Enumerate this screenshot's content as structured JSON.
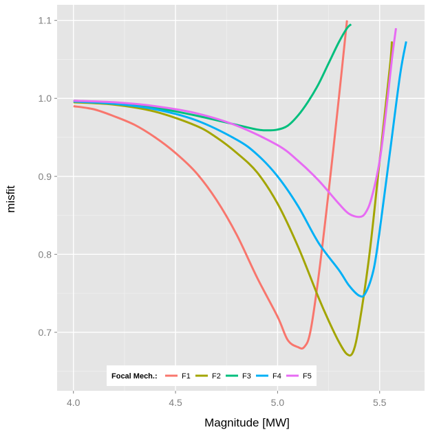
{
  "chart_data": {
    "type": "line",
    "xlabel": "Magnitude [MW]",
    "ylabel": "misfit",
    "xlim": [
      3.92,
      5.72
    ],
    "ylim": [
      0.625,
      1.12
    ],
    "x_ticks": [
      4.0,
      4.5,
      5.0,
      5.5
    ],
    "x_tick_labels": [
      "4.0",
      "4.5",
      "5.0",
      "5.5"
    ],
    "y_ticks": [
      0.7,
      0.8,
      0.9,
      1.0,
      1.1
    ],
    "y_tick_labels": [
      "0.7",
      "0.8",
      "0.9",
      "1.0",
      "1.1"
    ],
    "grid": true,
    "legend": {
      "title": "Focal Mech.:",
      "placement": "bottom"
    },
    "series": [
      {
        "name": "F1",
        "color": "#F8766D",
        "x": [
          4.0,
          4.1,
          4.2,
          4.3,
          4.4,
          4.5,
          4.6,
          4.7,
          4.8,
          4.9,
          5.0,
          5.05,
          5.1,
          5.13,
          5.16,
          5.2,
          5.25,
          5.3,
          5.34
        ],
        "y": [
          0.99,
          0.986,
          0.977,
          0.966,
          0.95,
          0.93,
          0.905,
          0.87,
          0.825,
          0.77,
          0.72,
          0.69,
          0.681,
          0.681,
          0.7,
          0.77,
          0.88,
          1.0,
          1.1
        ]
      },
      {
        "name": "F2",
        "color": "#A3A500",
        "x": [
          4.0,
          4.2,
          4.4,
          4.6,
          4.7,
          4.8,
          4.9,
          5.0,
          5.1,
          5.2,
          5.25,
          5.3,
          5.34,
          5.37,
          5.4,
          5.45,
          5.5,
          5.55,
          5.56
        ],
        "y": [
          0.995,
          0.992,
          0.983,
          0.965,
          0.95,
          0.93,
          0.905,
          0.865,
          0.81,
          0.745,
          0.715,
          0.688,
          0.672,
          0.675,
          0.71,
          0.8,
          0.92,
          1.04,
          1.073
        ]
      },
      {
        "name": "F3",
        "color": "#00BF7D",
        "x": [
          4.0,
          4.2,
          4.4,
          4.6,
          4.8,
          4.9,
          4.95,
          5.0,
          5.05,
          5.1,
          5.15,
          5.2,
          5.25,
          5.3,
          5.34,
          5.36
        ],
        "y": [
          0.997,
          0.994,
          0.988,
          0.978,
          0.966,
          0.96,
          0.959,
          0.96,
          0.965,
          0.978,
          0.996,
          1.018,
          1.045,
          1.072,
          1.09,
          1.095
        ]
      },
      {
        "name": "F4",
        "color": "#00B0F6",
        "x": [
          4.0,
          4.2,
          4.4,
          4.6,
          4.8,
          4.9,
          5.0,
          5.1,
          5.2,
          5.3,
          5.35,
          5.4,
          5.43,
          5.47,
          5.5,
          5.55,
          5.6,
          5.63
        ],
        "y": [
          0.996,
          0.993,
          0.986,
          0.972,
          0.947,
          0.928,
          0.9,
          0.862,
          0.815,
          0.78,
          0.76,
          0.747,
          0.75,
          0.78,
          0.83,
          0.93,
          1.03,
          1.073
        ]
      },
      {
        "name": "F5",
        "color": "#E76BF3",
        "x": [
          4.0,
          4.2,
          4.4,
          4.6,
          4.8,
          5.0,
          5.1,
          5.2,
          5.3,
          5.35,
          5.4,
          5.43,
          5.46,
          5.5,
          5.53,
          5.56,
          5.58
        ],
        "y": [
          0.997,
          0.995,
          0.99,
          0.981,
          0.965,
          0.94,
          0.92,
          0.895,
          0.865,
          0.852,
          0.848,
          0.853,
          0.872,
          0.92,
          0.98,
          1.05,
          1.09
        ]
      }
    ]
  }
}
